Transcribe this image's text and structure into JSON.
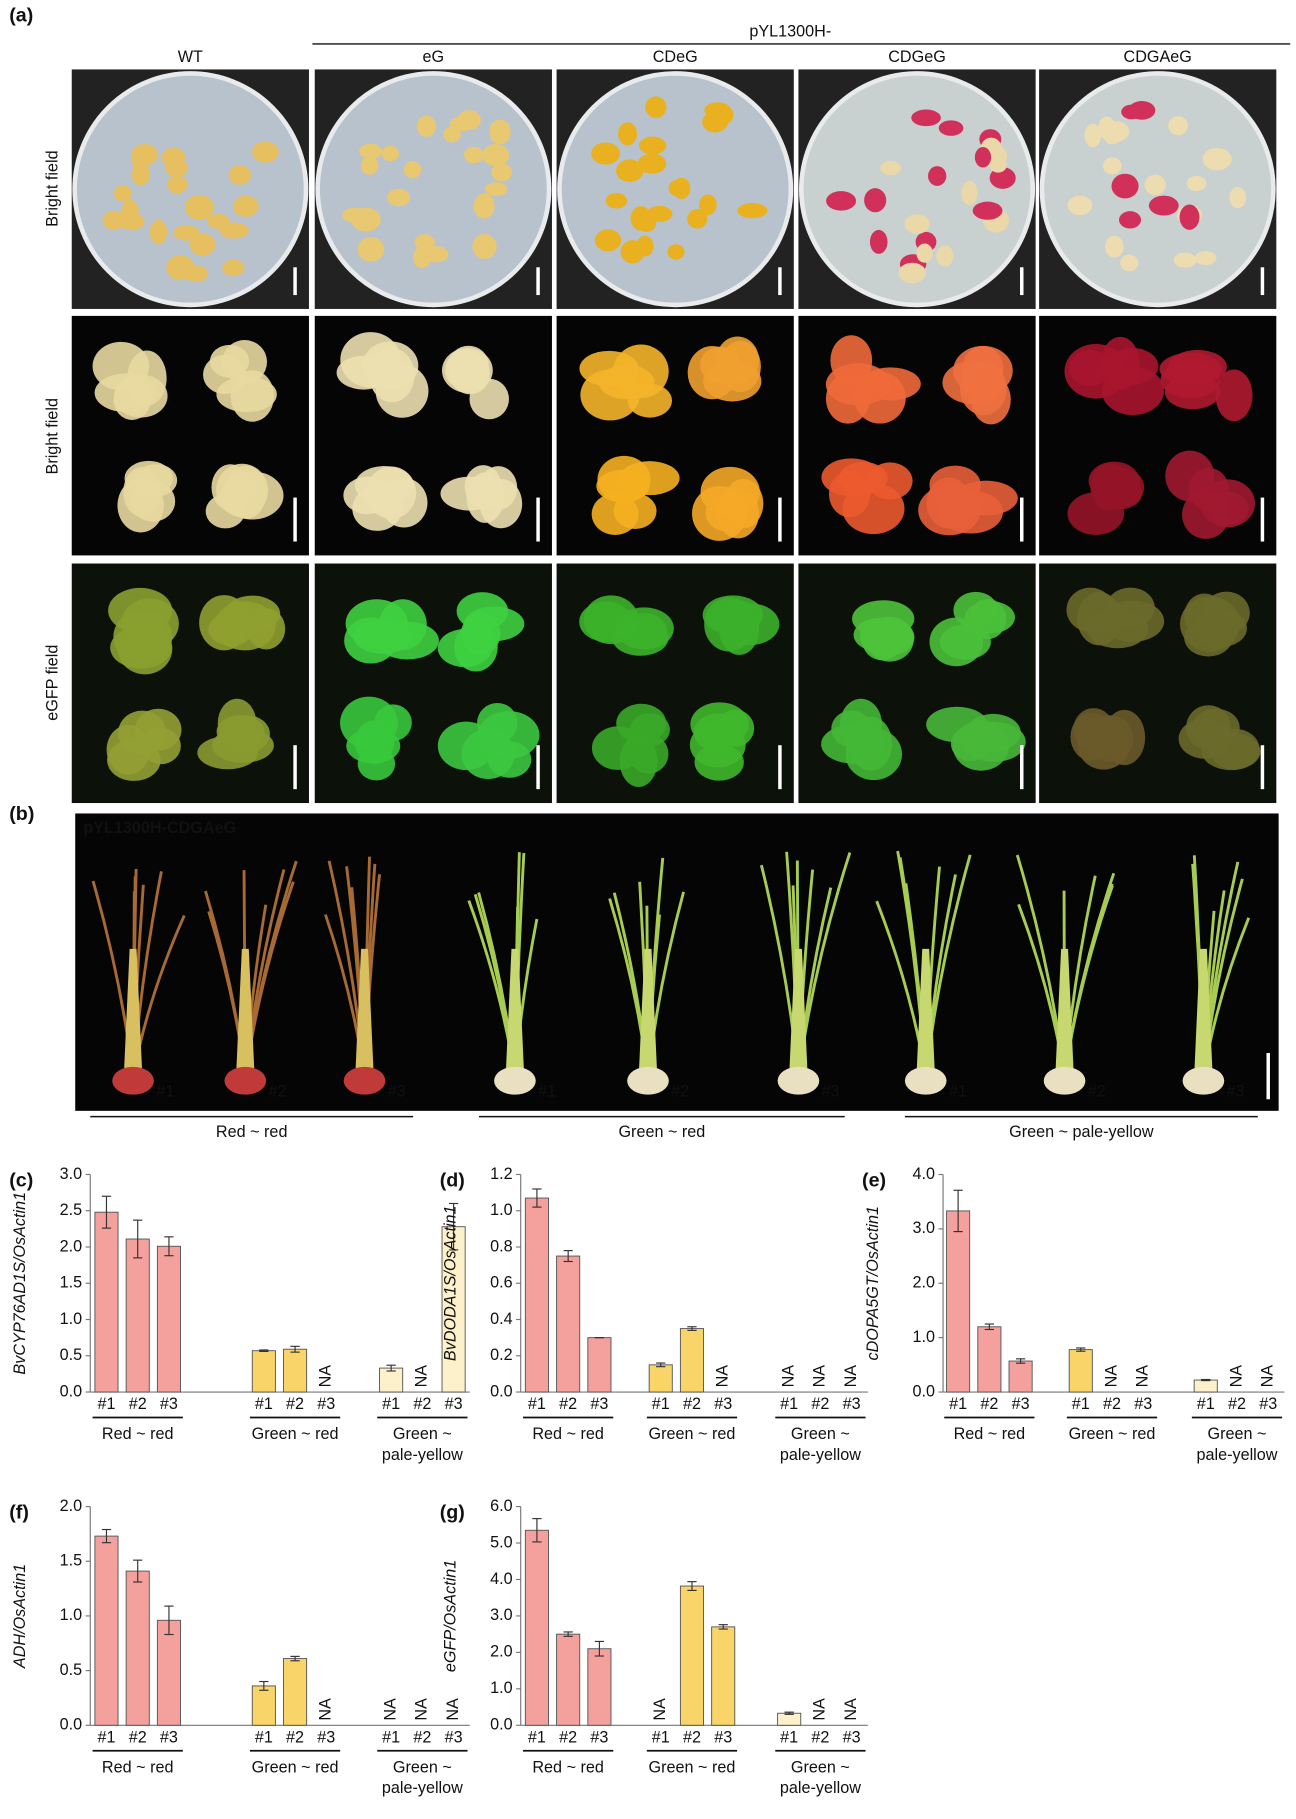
{
  "panel_a": {
    "label": "(a)",
    "construct_prefix": "pYL1300H-",
    "columns": [
      "WT",
      "eG",
      "CDeG",
      "CDGeG",
      "CDGAeG"
    ],
    "rows": [
      "Bright field",
      "Bright field",
      "eGFP field"
    ]
  },
  "panel_b": {
    "label": "(b)",
    "title": "pYL1300H-CDGAeG",
    "plants": [
      "#1",
      "#2",
      "#3",
      "#1",
      "#2",
      "#3",
      "#1",
      "#2",
      "#3"
    ],
    "groups": [
      "Red ~ red",
      "Green ~ red",
      "Green ~ pale-yellow"
    ]
  },
  "chart_data": [
    {
      "type": "bar",
      "label": "(c)",
      "ylabel": "BvCYP76AD1S/OsActin1",
      "ylim": [
        0,
        3
      ],
      "yticks": [
        {
          "value": 0,
          "label": "0.0"
        },
        0.5,
        {
          "value": 1,
          "label": "1.0"
        },
        1.5,
        {
          "value": 2,
          "label": "2.0"
        },
        2.5,
        {
          "value": 3,
          "label": "3.0"
        }
      ],
      "groups": [
        {
          "label": [
            "Red ~ red"
          ],
          "color": "#f4a09c",
          "categories": [
            "#1",
            "#2",
            "#3"
          ],
          "values": [
            2.48,
            2.11,
            2.01
          ],
          "errors": [
            0.22,
            0.26,
            0.13
          ],
          "value_labels": [
            null,
            null,
            null
          ]
        },
        {
          "label": [
            "Green ~ red"
          ],
          "color": "#f9d468",
          "categories": [
            "#1",
            "#2",
            "#3"
          ],
          "values": [
            0.57,
            0.59,
            null
          ],
          "errors": [
            0.01,
            0.04,
            null
          ],
          "value_labels": [
            null,
            null,
            "NA"
          ]
        },
        {
          "label": [
            "Green ~",
            "pale-yellow"
          ],
          "color": "#fdf1cc",
          "categories": [
            "#1",
            "#2",
            "#3"
          ],
          "values": [
            0.33,
            null,
            2.28
          ],
          "errors": [
            0.04,
            null,
            0.32
          ],
          "value_labels": [
            null,
            "NA",
            null
          ]
        }
      ]
    },
    {
      "type": "bar",
      "label": "(d)",
      "ylabel": "BvDODA1S/OsActin1",
      "ylim": [
        0,
        1.2
      ],
      "yticks": [
        {
          "value": 0,
          "label": "0.0"
        },
        0.2,
        0.4,
        0.6,
        0.8,
        {
          "value": 1,
          "label": "1.0"
        },
        1.2
      ],
      "groups": [
        {
          "label": [
            "Red ~ red"
          ],
          "color": "#f4a09c",
          "categories": [
            "#1",
            "#2",
            "#3"
          ],
          "values": [
            1.07,
            0.75,
            0.3
          ],
          "errors": [
            0.05,
            0.03,
            0
          ],
          "value_labels": [
            null,
            null,
            null
          ]
        },
        {
          "label": [
            "Green ~ red"
          ],
          "color": "#f9d468",
          "categories": [
            "#1",
            "#2",
            "#3"
          ],
          "values": [
            0.15,
            0.35,
            null
          ],
          "errors": [
            0.01,
            0.01,
            null
          ],
          "value_labels": [
            null,
            null,
            "NA"
          ]
        },
        {
          "label": [
            "Green ~",
            "pale-yellow"
          ],
          "color": "#fdf1cc",
          "categories": [
            "#1",
            "#2",
            "#3"
          ],
          "values": [
            null,
            null,
            null
          ],
          "errors": [
            null,
            null,
            null
          ],
          "value_labels": [
            "NA",
            "NA",
            "NA"
          ]
        }
      ]
    },
    {
      "type": "bar",
      "label": "(e)",
      "ylabel": "cDOPA5GT/OsActin1",
      "ylim": [
        0,
        4
      ],
      "yticks": [
        {
          "value": 0,
          "label": "0.0"
        },
        {
          "value": 1,
          "label": "1.0"
        },
        {
          "value": 2,
          "label": "2.0"
        },
        {
          "value": 3,
          "label": "3.0"
        },
        {
          "value": 4,
          "label": "4.0"
        }
      ],
      "groups": [
        {
          "label": [
            "Red ~ red"
          ],
          "color": "#f4a09c",
          "categories": [
            "#1",
            "#2",
            "#3"
          ],
          "values": [
            3.33,
            1.2,
            0.57
          ],
          "errors": [
            0.38,
            0.05,
            0.04
          ],
          "value_labels": [
            null,
            null,
            null
          ]
        },
        {
          "label": [
            "Green ~ red"
          ],
          "color": "#f9d468",
          "categories": [
            "#1",
            "#2",
            "#3"
          ],
          "values": [
            0.78,
            null,
            null
          ],
          "errors": [
            0.03,
            null,
            null
          ],
          "value_labels": [
            null,
            "NA",
            "NA"
          ]
        },
        {
          "label": [
            "Green ~",
            "pale-yellow"
          ],
          "color": "#fdf1cc",
          "categories": [
            "#1",
            "#2",
            "#3"
          ],
          "values": [
            0.22,
            null,
            null
          ],
          "errors": [
            0.01,
            null,
            null
          ],
          "value_labels": [
            null,
            "NA",
            "NA"
          ]
        }
      ]
    },
    {
      "type": "bar",
      "label": "(f)",
      "ylabel": "ADH/OsActin1",
      "ylim": [
        0,
        2
      ],
      "yticks": [
        {
          "value": 0,
          "label": "0.0"
        },
        0.5,
        {
          "value": 1,
          "label": "1.0"
        },
        1.5,
        {
          "value": 2,
          "label": "2.0"
        }
      ],
      "groups": [
        {
          "label": [
            "Red ~ red"
          ],
          "color": "#f4a09c",
          "categories": [
            "#1",
            "#2",
            "#3"
          ],
          "values": [
            1.73,
            1.41,
            0.96
          ],
          "errors": [
            0.06,
            0.1,
            0.13
          ],
          "value_labels": [
            null,
            null,
            null
          ]
        },
        {
          "label": [
            "Green ~ red"
          ],
          "color": "#f9d468",
          "categories": [
            "#1",
            "#2",
            "#3"
          ],
          "values": [
            0.36,
            0.61,
            null
          ],
          "errors": [
            0.04,
            0.02,
            null
          ],
          "value_labels": [
            null,
            null,
            "NA"
          ]
        },
        {
          "label": [
            "Green ~",
            "pale-yellow"
          ],
          "color": "#fdf1cc",
          "categories": [
            "#1",
            "#2",
            "#3"
          ],
          "values": [
            null,
            null,
            null
          ],
          "errors": [
            null,
            null,
            null
          ],
          "value_labels": [
            "NA",
            "NA",
            "NA"
          ]
        }
      ]
    },
    {
      "type": "bar",
      "label": "(g)",
      "ylabel": "eGFP/OsActin1",
      "ylim": [
        0,
        6
      ],
      "yticks": [
        {
          "value": 0,
          "label": "0.0"
        },
        {
          "value": 1,
          "label": "1.0"
        },
        {
          "value": 2,
          "label": "2.0"
        },
        {
          "value": 3,
          "label": "3.0"
        },
        {
          "value": 4,
          "label": "4.0"
        },
        {
          "value": 5,
          "label": "5.0"
        },
        {
          "value": 6,
          "label": "6.0"
        }
      ],
      "groups": [
        {
          "label": [
            "Red ~ red"
          ],
          "color": "#f4a09c",
          "categories": [
            "#1",
            "#2",
            "#3"
          ],
          "values": [
            5.35,
            2.5,
            2.1
          ],
          "errors": [
            0.32,
            0.06,
            0.2
          ],
          "value_labels": [
            null,
            null,
            null
          ]
        },
        {
          "label": [
            "Green ~ red"
          ],
          "color": "#f9d468",
          "categories": [
            "#1",
            "#2",
            "#3"
          ],
          "values": [
            null,
            3.82,
            2.7
          ],
          "errors": [
            null,
            0.12,
            0.06
          ],
          "value_labels": [
            "NA",
            null,
            null
          ]
        },
        {
          "label": [
            "Green ~",
            "pale-yellow"
          ],
          "color": "#fdf1cc",
          "categories": [
            "#1",
            "#2",
            "#3"
          ],
          "values": [
            0.33,
            null,
            null
          ],
          "errors": [
            0.03,
            null,
            null
          ],
          "value_labels": [
            null,
            "NA",
            "NA"
          ]
        }
      ]
    }
  ]
}
